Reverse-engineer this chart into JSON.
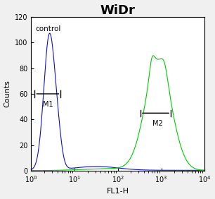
{
  "title": "WiDr",
  "xlabel": "FL1-H",
  "ylabel": "Counts",
  "title_fontsize": 13,
  "title_fontweight": "bold",
  "label_fontsize": 8,
  "tick_fontsize": 7,
  "xlim_log": [
    0,
    4
  ],
  "ylim": [
    0,
    120
  ],
  "yticks": [
    0,
    20,
    40,
    60,
    80,
    100,
    120
  ],
  "control_color": "#1010cc",
  "sample_color": "#00cc00",
  "control_label": "control",
  "m1_label": "M1",
  "m2_label": "M2",
  "bg_color": "#f0f0f0",
  "plot_bg_color": "#ffffff",
  "control_peak_log": 0.42,
  "control_peak_height": 105,
  "control_sigma_log": 0.13,
  "sample_peak_log": 2.93,
  "sample_peak_height": 85,
  "sample_sigma_log": 0.3,
  "m1_x1_log": 0.08,
  "m1_x2_log": 0.68,
  "m1_y": 60,
  "m2_x1_log": 2.52,
  "m2_x2_log": 3.22,
  "m2_y": 45
}
